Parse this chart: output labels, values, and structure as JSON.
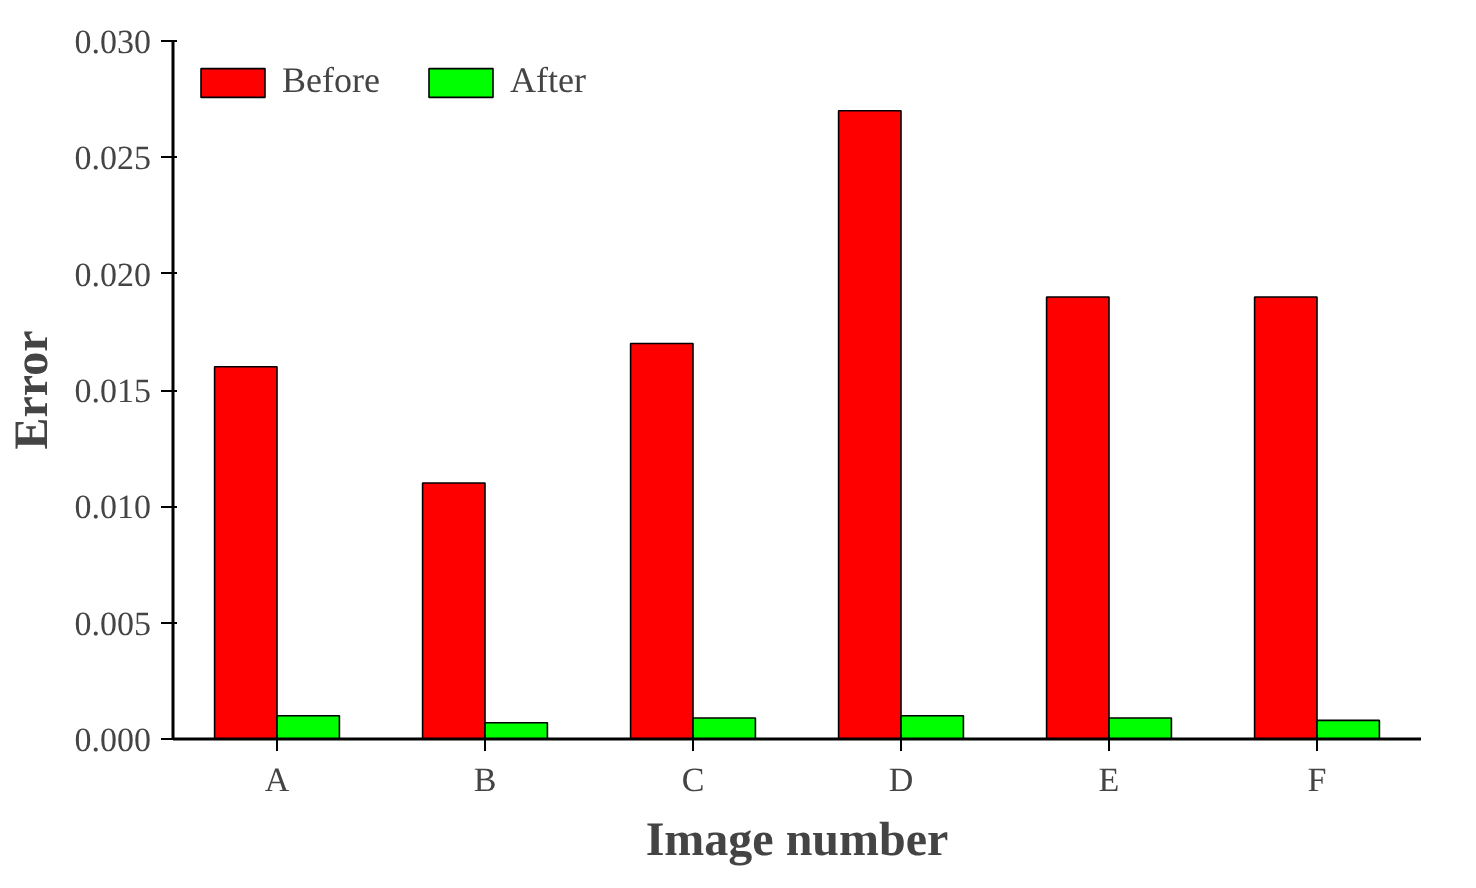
{
  "chart_data": {
    "type": "bar",
    "xlabel": "Image number",
    "ylabel": "Error",
    "categories": [
      "A",
      "B",
      "C",
      "D",
      "E",
      "F"
    ],
    "series": [
      {
        "name": "Before",
        "color": "#ff0000",
        "values": [
          0.016,
          0.011,
          0.017,
          0.027,
          0.019,
          0.019
        ]
      },
      {
        "name": "After",
        "color": "#00ff00",
        "values": [
          0.001,
          0.0007,
          0.0009,
          0.001,
          0.0009,
          0.0008
        ]
      }
    ],
    "ylim": [
      0,
      0.03
    ],
    "yticks": [
      {
        "value": 0,
        "label": "0.000"
      },
      {
        "value": 0.005,
        "label": "0.005"
      },
      {
        "value": 0.01,
        "label": "0.010"
      },
      {
        "value": 0.015,
        "label": "0.015"
      },
      {
        "value": 0.02,
        "label": "0.020"
      },
      {
        "value": 0.025,
        "label": "0.025"
      },
      {
        "value": 0.03,
        "label": "0.030"
      }
    ],
    "legend": "top left",
    "grid": false
  }
}
